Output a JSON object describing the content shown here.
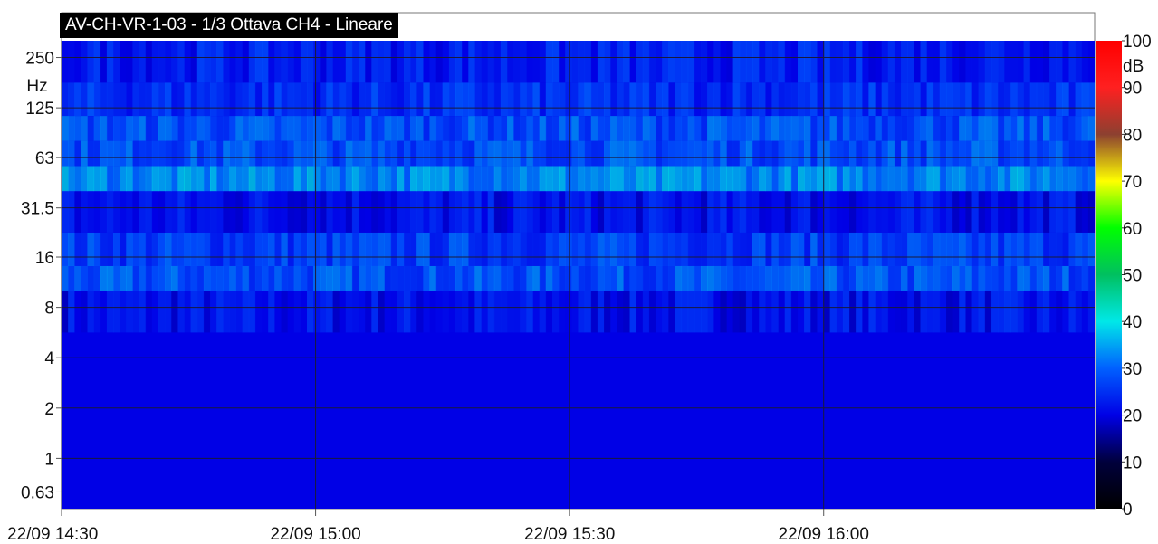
{
  "chart_data": {
    "type": "heatmap",
    "title": "AV-CH-VR-1-03 - 1/3 Ottava CH4 - Lineare",
    "y_unit": "Hz",
    "y_scale": "log",
    "y_ticks": [
      "250",
      "125",
      "63",
      "31.5",
      "16",
      "8",
      "4",
      "2",
      "1",
      "0.63"
    ],
    "y_tick_values": [
      250,
      125,
      63,
      31.5,
      16,
      8,
      4,
      2,
      1,
      0.63
    ],
    "ylim": [
      0.5,
      315
    ],
    "x_ticks": [
      "22/09 14:30",
      "22/09 15:00",
      "22/09 15:30",
      "22/09 16:00"
    ],
    "x_tick_minutes": [
      "14:30",
      "15:00",
      "15:30",
      "16:00"
    ],
    "xlim": [
      "22/09 14:30",
      "22/09 16:32"
    ],
    "grid": true,
    "colorbar": {
      "unit": "dB",
      "range": [
        0,
        100
      ],
      "ticks": [
        "100",
        "90",
        "80",
        "70",
        "60",
        "50",
        "40",
        "30",
        "20",
        "10",
        "0"
      ]
    },
    "bands": [
      {
        "freq_hz": 0.63,
        "typical_db": 20
      },
      {
        "freq_hz": 1,
        "typical_db": 20
      },
      {
        "freq_hz": 2,
        "typical_db": 20
      },
      {
        "freq_hz": 4,
        "typical_db": 20
      },
      {
        "freq_hz": 8,
        "typical_db": 22
      },
      {
        "freq_hz": 12.5,
        "typical_db": 30
      },
      {
        "freq_hz": 16,
        "typical_db": 28
      },
      {
        "freq_hz": 31.5,
        "typical_db": 22
      },
      {
        "freq_hz": 50,
        "typical_db": 36
      },
      {
        "freq_hz": 63,
        "typical_db": 30
      },
      {
        "freq_hz": 100,
        "typical_db": 30
      },
      {
        "freq_hz": 125,
        "typical_db": 26
      },
      {
        "freq_hz": 250,
        "typical_db": 24
      }
    ]
  }
}
